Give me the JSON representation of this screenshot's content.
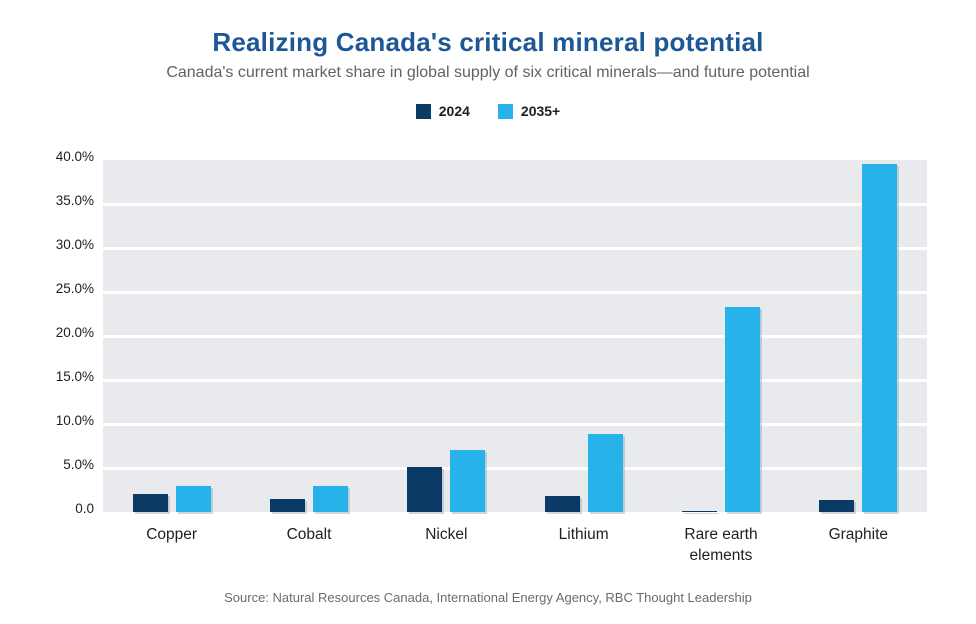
{
  "header": {
    "title": "Realizing Canada's critical mineral potential",
    "subtitle": "Canada's current market share in global supply of six critical minerals—and future potential"
  },
  "footer": {
    "source": "Source: Natural Resources Canada, International Energy Agency, RBC Thought Leadership"
  },
  "colors": {
    "title": "#1d5796",
    "subtitle_gray": "#5f6368",
    "plot_background": "#e8eaee",
    "gridline": "#ffffff",
    "series_2024": "#0b3a66",
    "series_2035": "#27b2e9"
  },
  "chart_data": {
    "type": "bar",
    "title": "Realizing Canada's critical mineral potential",
    "subtitle": "Canada's current market share in global supply of six critical minerals—and future potential",
    "categories": [
      "Copper",
      "Cobalt",
      "Nickel",
      "Lithium",
      "Rare earth elements",
      "Graphite"
    ],
    "series": [
      {
        "name": "2024",
        "color": "#0b3a66",
        "values": [
          2.1,
          1.5,
          5.1,
          1.8,
          0.1,
          1.4
        ]
      },
      {
        "name": "2035+",
        "color": "#27b2e9",
        "values": [
          3.0,
          3.0,
          7.1,
          8.9,
          23.3,
          39.5
        ]
      }
    ],
    "xlabel": "",
    "ylabel": "",
    "ylim": [
      0,
      40
    ],
    "y_tick_step": 5,
    "y_tick_labels": [
      "40.0%",
      "35.0%",
      "30.0%",
      "25.0%",
      "20.0%",
      "15.0%",
      "10.0%",
      "5.0%",
      "0.0"
    ],
    "grid": true,
    "legend_position": "top"
  }
}
